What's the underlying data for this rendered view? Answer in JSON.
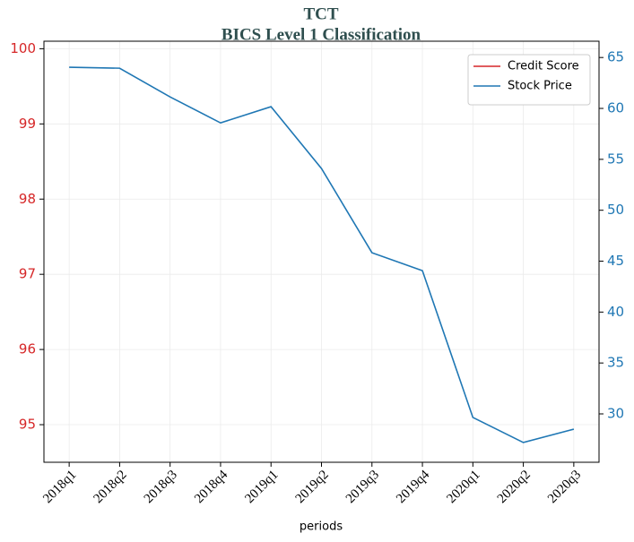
{
  "chart_data": {
    "type": "line",
    "title": "TCT",
    "subtitle": "BICS Level 1 Classification",
    "xlabel": "periods",
    "categories": [
      "2018q1",
      "2018q2",
      "2018q3",
      "2018q4",
      "2019q1",
      "2019q2",
      "2019q3",
      "2019q4",
      "2020q1",
      "2020q2",
      "2020q3"
    ],
    "series": [
      {
        "name": "Credit Score",
        "color": "#d62728",
        "values": [
          null,
          null,
          null,
          null,
          null,
          null,
          null,
          null,
          null,
          null,
          null
        ]
      },
      {
        "name": "Stock Price",
        "color": "#1f77b4",
        "axis": "y2",
        "values": [
          64.04,
          63.95,
          61.13,
          58.58,
          60.17,
          54.1,
          45.83,
          44.07,
          29.65,
          27.19,
          28.5
        ]
      }
    ],
    "ylim": [
      94.5,
      100.1
    ],
    "yticks": [
      95,
      96,
      97,
      98,
      99,
      100
    ],
    "y2lim": [
      25.25,
      66.6
    ],
    "y2ticks": [
      30,
      35,
      40,
      45,
      50,
      55,
      60,
      65
    ],
    "ycolor": "#d62728",
    "y2color": "#1f77b4",
    "grid": true,
    "legend": "upper right"
  }
}
